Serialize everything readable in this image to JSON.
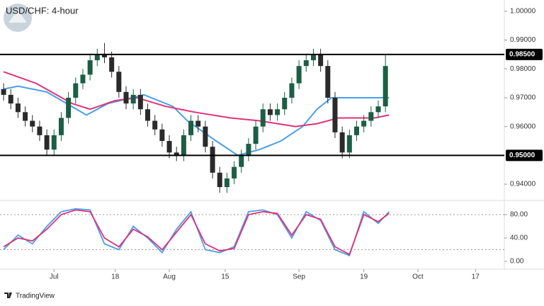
{
  "chart_data": [
    {
      "type": "candlestick",
      "title": "USD/CHF: 4-hour",
      "xlim": [
        0,
        140
      ],
      "ylim": [
        0.9351,
        1.0039
      ],
      "yticks": [
        {
          "value": 1.0,
          "label": "1.00000"
        },
        {
          "value": 0.99,
          "label": "0.99000"
        },
        {
          "value": 0.98,
          "label": "0.98000"
        },
        {
          "value": 0.97,
          "label": "0.97000"
        },
        {
          "value": 0.96,
          "label": "0.96000"
        },
        {
          "value": 0.94,
          "label": "0.94000"
        }
      ],
      "levels": [
        {
          "value": 0.985,
          "label": "0.98500"
        },
        {
          "value": 0.95,
          "label": "0.95000"
        }
      ],
      "up_color": "#1b5e45",
      "down_color": "#2a2a2a",
      "x": [
        1,
        3,
        5,
        7,
        9,
        11,
        13,
        15,
        17,
        19,
        21,
        23,
        25,
        27,
        29,
        31,
        33,
        35,
        37,
        39,
        41,
        43,
        45,
        47,
        49,
        51,
        53,
        55,
        57,
        59,
        61,
        63,
        65,
        67,
        69,
        71,
        73,
        75,
        77,
        79,
        81,
        83,
        85,
        87,
        89,
        91,
        93,
        95,
        97,
        99,
        101,
        103,
        105,
        107
      ],
      "open": [
        0.973,
        0.971,
        0.968,
        0.965,
        0.962,
        0.96,
        0.957,
        0.952,
        0.957,
        0.963,
        0.97,
        0.975,
        0.978,
        0.983,
        0.985,
        0.984,
        0.979,
        0.972,
        0.968,
        0.971,
        0.966,
        0.962,
        0.959,
        0.955,
        0.951,
        0.95,
        0.957,
        0.962,
        0.96,
        0.953,
        0.944,
        0.939,
        0.942,
        0.946,
        0.95,
        0.954,
        0.96,
        0.966,
        0.964,
        0.966,
        0.97,
        0.975,
        0.981,
        0.983,
        0.985,
        0.981,
        0.97,
        0.958,
        0.951,
        0.957,
        0.96,
        0.962,
        0.965,
        0.967
      ],
      "high": [
        0.975,
        0.973,
        0.97,
        0.967,
        0.964,
        0.962,
        0.959,
        0.959,
        0.965,
        0.972,
        0.977,
        0.98,
        0.985,
        0.987,
        0.989,
        0.986,
        0.981,
        0.974,
        0.973,
        0.973,
        0.968,
        0.964,
        0.961,
        0.957,
        0.953,
        0.959,
        0.964,
        0.964,
        0.962,
        0.955,
        0.946,
        0.944,
        0.948,
        0.952,
        0.956,
        0.962,
        0.968,
        0.968,
        0.968,
        0.972,
        0.977,
        0.983,
        0.985,
        0.987,
        0.987,
        0.983,
        0.972,
        0.96,
        0.959,
        0.962,
        0.964,
        0.967,
        0.969,
        0.985
      ],
      "low": [
        0.969,
        0.966,
        0.963,
        0.96,
        0.958,
        0.955,
        0.95,
        0.95,
        0.955,
        0.961,
        0.968,
        0.973,
        0.976,
        0.981,
        0.982,
        0.977,
        0.97,
        0.966,
        0.966,
        0.964,
        0.96,
        0.957,
        0.953,
        0.949,
        0.948,
        0.948,
        0.955,
        0.958,
        0.951,
        0.942,
        0.937,
        0.937,
        0.94,
        0.944,
        0.948,
        0.952,
        0.958,
        0.962,
        0.962,
        0.964,
        0.968,
        0.973,
        0.979,
        0.981,
        0.979,
        0.968,
        0.956,
        0.949,
        0.949,
        0.955,
        0.958,
        0.96,
        0.963,
        0.965
      ],
      "close": [
        0.971,
        0.968,
        0.965,
        0.962,
        0.96,
        0.957,
        0.952,
        0.957,
        0.963,
        0.97,
        0.975,
        0.978,
        0.983,
        0.985,
        0.984,
        0.979,
        0.972,
        0.968,
        0.971,
        0.966,
        0.962,
        0.959,
        0.955,
        0.951,
        0.95,
        0.957,
        0.962,
        0.96,
        0.953,
        0.944,
        0.939,
        0.942,
        0.946,
        0.95,
        0.954,
        0.96,
        0.966,
        0.964,
        0.966,
        0.97,
        0.975,
        0.981,
        0.983,
        0.985,
        0.981,
        0.97,
        0.958,
        0.951,
        0.957,
        0.96,
        0.962,
        0.965,
        0.967,
        0.981
      ],
      "overlays": [
        {
          "color": "#4a9fe8",
          "x": [
            1,
            5,
            13,
            24,
            30,
            40,
            48,
            52,
            60,
            66,
            72,
            78,
            84,
            88,
            92,
            100,
            108
          ],
          "values": [
            0.973,
            0.974,
            0.972,
            0.964,
            0.968,
            0.971,
            0.967,
            0.962,
            0.955,
            0.95,
            0.952,
            0.955,
            0.96,
            0.966,
            0.97,
            0.97,
            0.97
          ]
        },
        {
          "color": "#e0307a",
          "x": [
            1,
            10,
            20,
            25,
            32,
            38,
            46,
            54,
            64,
            72,
            82,
            88,
            94,
            104,
            108
          ],
          "values": [
            0.979,
            0.975,
            0.968,
            0.966,
            0.969,
            0.97,
            0.967,
            0.965,
            0.963,
            0.962,
            0.96,
            0.961,
            0.963,
            0.963,
            0.964
          ]
        }
      ]
    },
    {
      "type": "line",
      "xlim": [
        0,
        140
      ],
      "ylim": [
        -13.3,
        101.8
      ],
      "yticks": [
        {
          "value": 80,
          "label": "80.00"
        },
        {
          "value": 40,
          "label": "40.00"
        },
        {
          "value": 0,
          "label": "0.00"
        }
      ],
      "levels": [
        80,
        20
      ],
      "xticks": [
        {
          "value": 15,
          "label": "Jul"
        },
        {
          "value": 32,
          "label": "18"
        },
        {
          "value": 47,
          "label": "Aug"
        },
        {
          "value": 62.5,
          "label": "15"
        },
        {
          "value": 83,
          "label": "Sep"
        },
        {
          "value": 101,
          "label": "19"
        },
        {
          "value": 116,
          "label": "Oct"
        },
        {
          "value": 132,
          "label": "17"
        }
      ],
      "x": [
        1,
        5,
        9,
        13,
        17,
        21,
        25,
        29,
        33,
        37,
        41,
        45,
        49,
        53,
        57,
        61,
        65,
        69,
        73,
        77,
        81,
        85,
        89,
        93,
        97,
        101,
        105,
        108
      ],
      "series": [
        {
          "color": "#4a9fe8",
          "values": [
            20,
            45,
            30,
            60,
            85,
            90,
            88,
            30,
            20,
            60,
            40,
            15,
            55,
            85,
            20,
            15,
            25,
            85,
            88,
            80,
            40,
            85,
            70,
            20,
            10,
            85,
            65,
            85
          ]
        },
        {
          "color": "#e0307a",
          "values": [
            25,
            40,
            35,
            55,
            80,
            88,
            85,
            40,
            25,
            55,
            42,
            20,
            50,
            80,
            30,
            18,
            22,
            80,
            85,
            82,
            45,
            80,
            72,
            25,
            12,
            80,
            68,
            82
          ]
        }
      ]
    }
  ],
  "footer": "TradingView"
}
